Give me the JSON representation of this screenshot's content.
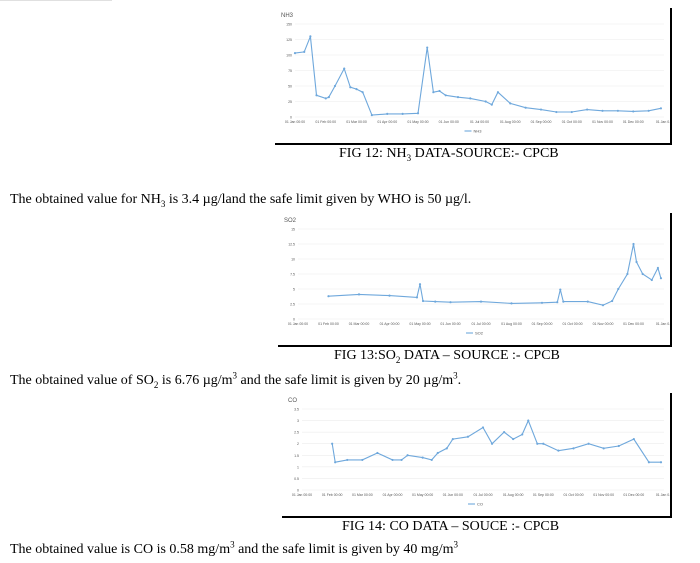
{
  "figures": [
    {
      "caption_pre": "FIG 12: NH",
      "caption_sub": "3",
      "caption_post": " DATA-SOURCE:- CPCB",
      "chart_data": {
        "type": "line",
        "title": "NH3",
        "legend": "NH3",
        "line_color": "#6fa8dc",
        "ylim": [
          0,
          150
        ],
        "yticks": [
          0,
          25,
          50,
          75,
          100,
          125,
          150
        ],
        "xticks": [
          "01 Jan 00:00",
          "01 Feb 00:00",
          "01 Mar 00:00",
          "01 Apr 00:00",
          "01 May 00:00",
          "01 Jun 00:00",
          "01 Jul 00:00",
          "01 Aug 00:00",
          "01 Sep 00:00",
          "01 Oct 00:00",
          "01 Nov 00:00",
          "01 Dec 00:00",
          "01 Jan 0..."
        ],
        "x": [
          0,
          0.3,
          0.5,
          0.7,
          1.0,
          1.1,
          1.3,
          1.6,
          1.8,
          2.0,
          2.2,
          2.5,
          3.0,
          3.5,
          4.0,
          4.3,
          4.5,
          4.7,
          4.9,
          5.3,
          5.7,
          6.2,
          6.4,
          6.6,
          7.0,
          7.5,
          8.0,
          8.5,
          9.0,
          9.5,
          10.0,
          10.5,
          11.0,
          11.5,
          11.9
        ],
        "y": [
          103,
          105,
          130,
          35,
          30,
          32,
          50,
          78,
          48,
          45,
          40,
          3,
          5,
          5,
          6,
          112,
          40,
          42,
          35,
          32,
          30,
          25,
          20,
          40,
          22,
          15,
          12,
          8,
          8,
          12,
          10,
          10,
          9,
          10,
          14
        ]
      }
    },
    {
      "caption_pre": "FIG 13:SO",
      "caption_sub": "2",
      "caption_post": " DATA – SOURCE :- CPCB",
      "chart_data": {
        "type": "line",
        "title": "SO2",
        "legend": "SO2",
        "line_color": "#6fa8dc",
        "ylim": [
          0,
          15
        ],
        "yticks": [
          0,
          2.5,
          5,
          7.5,
          10,
          12.5,
          15
        ],
        "xticks": [
          "01 Jan 00:00",
          "01 Feb 00:00",
          "01 Mar 00:00",
          "01 Apr 00:00",
          "01 May 00:00",
          "01 Jun 00:00",
          "01 Jul 00:00",
          "01 Aug 00:00",
          "01 Sep 00:00",
          "01 Oct 00:00",
          "01 Nov 00:00",
          "01 Dec 00:00",
          "01 Jan 0..."
        ],
        "x": [
          1.0,
          2.0,
          3.0,
          3.9,
          4.0,
          4.1,
          4.5,
          5.0,
          6.0,
          7.0,
          8.0,
          8.5,
          8.6,
          8.7,
          9.5,
          10.0,
          10.3,
          10.5,
          10.8,
          11.0,
          11.1,
          11.3,
          11.6,
          11.8,
          11.9
        ],
        "y": [
          3.8,
          4.1,
          3.9,
          3.6,
          5.8,
          3.0,
          2.9,
          2.8,
          2.9,
          2.6,
          2.7,
          2.8,
          4.9,
          2.9,
          2.9,
          2.3,
          3.0,
          5.0,
          7.5,
          12.5,
          9.5,
          7.5,
          6.5,
          8.5,
          6.8
        ]
      }
    },
    {
      "caption_pre": "FIG 14: CO DATA – SOUCE :- CPCB",
      "caption_sub": "",
      "caption_post": "",
      "chart_data": {
        "type": "line",
        "title": "CO",
        "legend": "CO",
        "line_color": "#6fa8dc",
        "ylim": [
          0,
          3.5
        ],
        "yticks": [
          0,
          0.5,
          1,
          1.5,
          2,
          2.5,
          3,
          3.5
        ],
        "xticks": [
          "01 Jan 00:00",
          "01 Feb 00:00",
          "01 Mar 00:00",
          "01 Apr 00:00",
          "01 May 00:00",
          "01 Jun 00:00",
          "01 Jul 00:00",
          "01 Aug 00:00",
          "01 Sep 00:00",
          "01 Oct 00:00",
          "01 Nov 00:00",
          "01 Dec 00:00",
          "01 Jan 0..."
        ],
        "x": [
          1.0,
          1.1,
          1.5,
          2.0,
          2.5,
          3.0,
          3.3,
          3.5,
          4.0,
          4.3,
          4.5,
          4.8,
          5.0,
          5.5,
          6.0,
          6.3,
          6.7,
          7.0,
          7.3,
          7.5,
          7.8,
          8.0,
          8.5,
          9.0,
          9.5,
          10.0,
          10.5,
          11.0,
          11.5,
          11.9
        ],
        "y": [
          2.0,
          1.2,
          1.3,
          1.3,
          1.6,
          1.3,
          1.3,
          1.5,
          1.4,
          1.3,
          1.6,
          1.8,
          2.2,
          2.3,
          2.7,
          2.0,
          2.5,
          2.2,
          2.4,
          3.0,
          2.0,
          2.0,
          1.7,
          1.8,
          2.0,
          1.8,
          1.9,
          2.2,
          1.2,
          1.2
        ]
      }
    }
  ],
  "paragraphs": {
    "p1": {
      "a": "The obtained value for NH",
      "sub": "3",
      "b": " is 3.4 µg/land the safe limit given by WHO is 50 µg/l."
    },
    "p2": {
      "a": "The obtained value of SO",
      "sub": "2",
      "b": " is 6.76 µg/m",
      "sup1": "3",
      "c": " and the safe limit is given by 20 µg/m",
      "sup2": "3",
      "d": "."
    },
    "p3": {
      "a": "The obtained value is CO is 0.58 mg/m",
      "sup1": "3",
      "b": " and the safe limit is given by 40 mg/m",
      "sup2": "3"
    }
  }
}
